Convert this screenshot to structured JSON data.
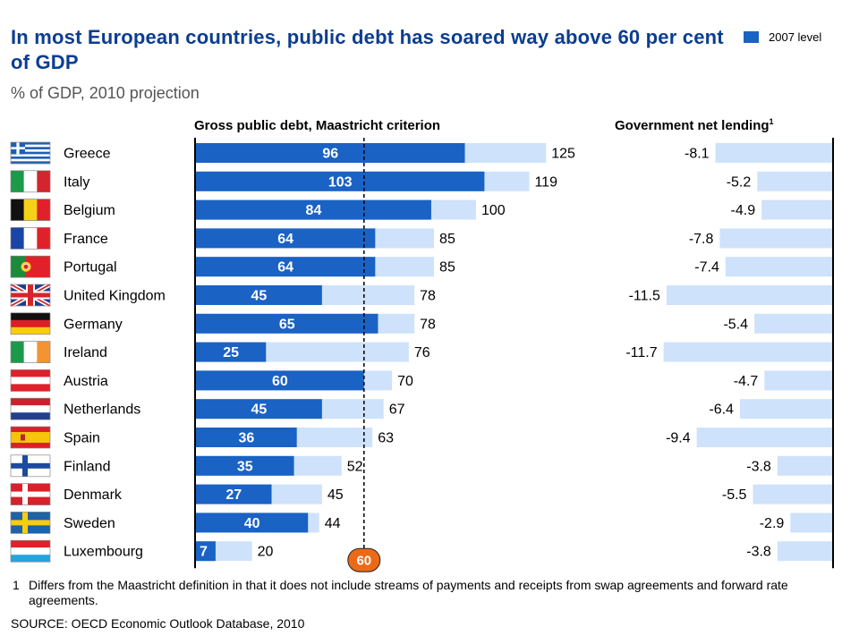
{
  "colors": {
    "title": "#0b3d91",
    "bar_2010": "#cfe2fb",
    "bar_2007": "#1a62c4",
    "bar_2007_label": "#ffffff",
    "marker": "#ea6a1a",
    "axis": "#000000"
  },
  "title": "In most European countries, public debt has soared way above 60 per cent of GDP",
  "subtitle": "% of GDP, 2010 projection",
  "legend": {
    "label": "2007 level"
  },
  "footnote": {
    "marker": "1",
    "text": "Differs from the Maastricht definition in that it does not include streams of payments and receipts from swap agreements and forward rate agreements."
  },
  "source": "SOURCE: OECD Economic Outlook Database, 2010",
  "chart_data": [
    {
      "type": "bar",
      "orientation": "horizontal",
      "title": "Gross public debt, Maastricht criterion",
      "categories": [
        "Greece",
        "Italy",
        "Belgium",
        "France",
        "Portugal",
        "United Kingdom",
        "Germany",
        "Ireland",
        "Austria",
        "Netherlands",
        "Spain",
        "Finland",
        "Denmark",
        "Sweden",
        "Luxembourg"
      ],
      "flags": [
        "greece-flag-icon",
        "italy-flag-icon",
        "belgium-flag-icon",
        "france-flag-icon",
        "portugal-flag-icon",
        "united-kingdom-flag-icon",
        "germany-flag-icon",
        "ireland-flag-icon",
        "austria-flag-icon",
        "netherlands-flag-icon",
        "spain-flag-icon",
        "finland-flag-icon",
        "denmark-flag-icon",
        "sweden-flag-icon",
        "luxembourg-flag-icon"
      ],
      "series": [
        {
          "values": [
            125,
            119,
            100,
            85,
            85,
            78,
            78,
            76,
            70,
            67,
            63,
            52,
            45,
            44,
            20
          ]
        },
        {
          "name": "2007 level",
          "values": [
            96,
            103,
            84,
            64,
            64,
            45,
            65,
            25,
            60,
            45,
            36,
            35,
            27,
            40,
            7
          ]
        }
      ],
      "reference_line": {
        "value": 60,
        "label": "60"
      },
      "xlim": [
        0,
        130
      ]
    },
    {
      "type": "bar",
      "orientation": "horizontal",
      "title": "Government net lending",
      "title_note": "1",
      "categories": [
        "Greece",
        "Italy",
        "Belgium",
        "France",
        "Portugal",
        "United Kingdom",
        "Germany",
        "Ireland",
        "Austria",
        "Netherlands",
        "Spain",
        "Finland",
        "Denmark",
        "Sweden",
        "Luxembourg"
      ],
      "values": [
        -8.1,
        -5.2,
        -4.9,
        -7.8,
        -7.4,
        -11.5,
        -5.4,
        -11.7,
        -4.7,
        -6.4,
        -9.4,
        -3.8,
        -5.5,
        -2.9,
        -3.8
      ],
      "xlim": [
        -12,
        0
      ]
    }
  ]
}
